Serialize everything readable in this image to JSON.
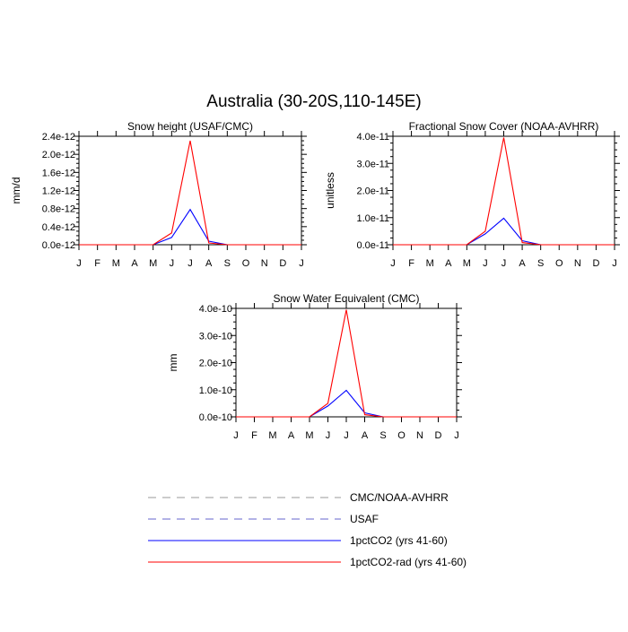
{
  "figure": {
    "title": "Australia (30-20S,110-145E)"
  },
  "colors": {
    "cmc_noaa": "#999999",
    "usaf": "#6666cc",
    "pct_co2": "#0000ff",
    "pct_co2_rad": "#ff0000",
    "axis": "#000000"
  },
  "legend": {
    "items": [
      {
        "label": "CMC/NOAA-AVHRR",
        "style": "dashed",
        "color": "#999999"
      },
      {
        "label": "USAF",
        "style": "dashed",
        "color": "#6666cc"
      },
      {
        "label": "1pctCO2 (yrs 41-60)",
        "style": "solid",
        "color": "#0000ff"
      },
      {
        "label": "1pctCO2-rad (yrs 41-60)",
        "style": "solid",
        "color": "#ff0000"
      }
    ]
  },
  "chart_data": [
    {
      "type": "line",
      "title": "Snow height (USAF/CMC)",
      "xlabel": "",
      "ylabel": "mm/d",
      "x_ticks": [
        "J",
        "F",
        "M",
        "A",
        "M",
        "J",
        "J",
        "A",
        "S",
        "O",
        "N",
        "D",
        "J"
      ],
      "ylim": [
        0,
        2.4e-12
      ],
      "y_ticks": [
        0,
        4e-13,
        8e-13,
        1.2e-12,
        1.6e-12,
        2e-12,
        2.4e-12
      ],
      "y_tick_labels": [
        "0.0e-12",
        "0.4e-12",
        "0.8e-12",
        "1.2e-12",
        "1.6e-12",
        "2.0e-12",
        "2.4e-12"
      ],
      "series": [
        {
          "name": "1pctCO2 (yrs 41-60)",
          "color": "#0000ff",
          "values": [
            0,
            0,
            0,
            0,
            0,
            1.6e-13,
            7.8e-13,
            8e-14,
            0,
            0,
            0,
            0,
            0
          ]
        },
        {
          "name": "1pctCO2-rad (yrs 41-60)",
          "color": "#ff0000",
          "values": [
            0,
            0,
            0,
            0,
            0,
            2.6e-13,
            2.3e-12,
            4e-14,
            0,
            0,
            0,
            0,
            0
          ]
        }
      ]
    },
    {
      "type": "line",
      "title": "Fractional Snow Cover (NOAA-AVHRR)",
      "xlabel": "",
      "ylabel": "unitless",
      "x_ticks": [
        "J",
        "F",
        "M",
        "A",
        "M",
        "J",
        "J",
        "A",
        "S",
        "O",
        "N",
        "D",
        "J"
      ],
      "ylim": [
        0,
        4e-11
      ],
      "y_ticks": [
        0,
        1e-11,
        2e-11,
        3e-11,
        4e-11
      ],
      "y_tick_labels": [
        "0.0e-11",
        "1.0e-11",
        "2.0e-11",
        "3.0e-11",
        "4.0e-11"
      ],
      "series": [
        {
          "name": "1pctCO2 (yrs 41-60)",
          "color": "#0000ff",
          "values": [
            0,
            0,
            0,
            0,
            0,
            4e-12,
            9.8e-12,
            1.5e-12,
            0,
            0,
            0,
            0,
            0
          ]
        },
        {
          "name": "1pctCO2-rad (yrs 41-60)",
          "color": "#ff0000",
          "values": [
            0,
            0,
            0,
            0,
            0,
            5e-12,
            3.95e-11,
            8e-13,
            0,
            0,
            0,
            0,
            0
          ]
        }
      ]
    },
    {
      "type": "line",
      "title": "Snow Water Equivalent (CMC)",
      "xlabel": "",
      "ylabel": "mm",
      "x_ticks": [
        "J",
        "F",
        "M",
        "A",
        "M",
        "J",
        "J",
        "A",
        "S",
        "O",
        "N",
        "D",
        "J"
      ],
      "ylim": [
        0,
        4e-10
      ],
      "y_ticks": [
        0,
        1e-10,
        2e-10,
        3e-10,
        4e-10
      ],
      "y_tick_labels": [
        "0.0e-10",
        "1.0e-10",
        "2.0e-10",
        "3.0e-10",
        "4.0e-10"
      ],
      "series": [
        {
          "name": "1pctCO2 (yrs 41-60)",
          "color": "#0000ff",
          "values": [
            0,
            0,
            0,
            0,
            0,
            4e-11,
            9.8e-11,
            1.5e-11,
            0,
            0,
            0,
            0,
            0
          ]
        },
        {
          "name": "1pctCO2-rad (yrs 41-60)",
          "color": "#ff0000",
          "values": [
            0,
            0,
            0,
            0,
            0,
            5e-11,
            3.95e-10,
            8e-12,
            0,
            0,
            0,
            0,
            0
          ]
        }
      ]
    }
  ]
}
